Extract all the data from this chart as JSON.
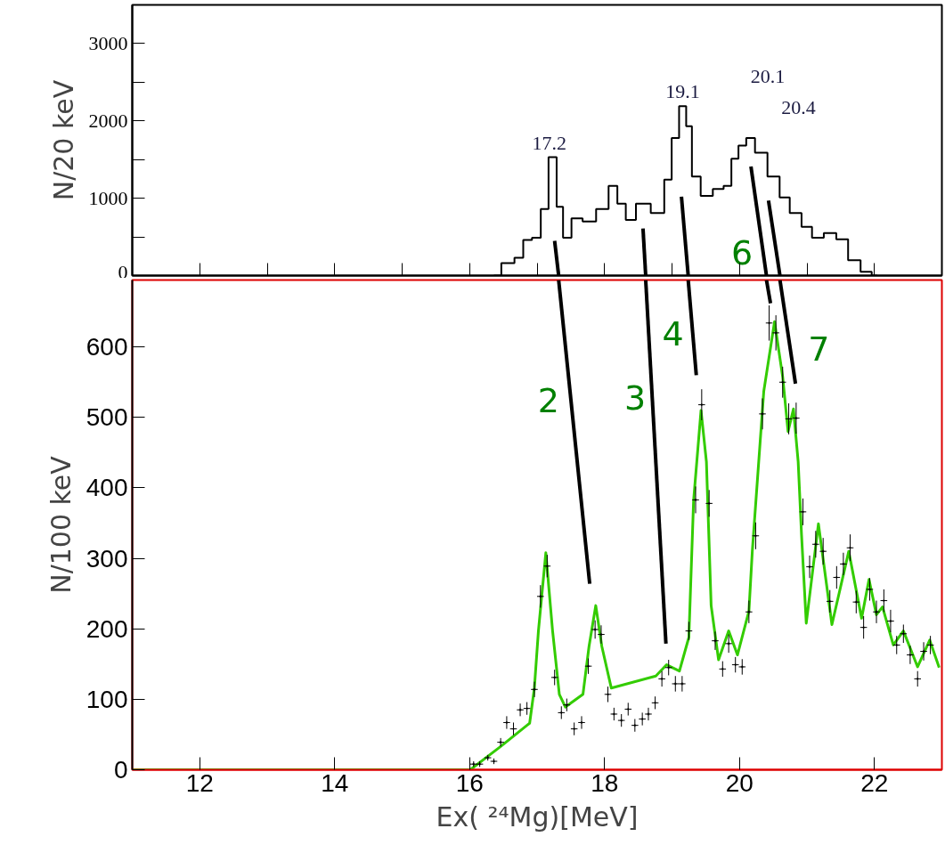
{
  "chart_data": [
    {
      "type": "step",
      "ylabel": "N/20 keV",
      "xlim": [
        11,
        23
      ],
      "ylim": [
        0,
        3500
      ],
      "tick_labels": "y",
      "xticks": [
        {
          "value": 12,
          "label": null
        },
        {
          "value": 13,
          "label": null
        },
        {
          "value": 14,
          "label": null
        },
        {
          "value": 15,
          "label": null
        },
        {
          "value": 16,
          "label": null
        },
        {
          "value": 17,
          "label": null
        },
        {
          "value": 18,
          "label": null
        },
        {
          "value": 19,
          "label": null
        },
        {
          "value": 20,
          "label": null
        },
        {
          "value": 21,
          "label": null
        },
        {
          "value": 22,
          "label": null
        }
      ],
      "yticks": [
        0,
        {
          "value": 500,
          "label": null
        },
        1000,
        {
          "value": 1500,
          "label": null
        },
        2000,
        {
          "value": 2500,
          "label": null
        },
        3000
      ],
      "x": [
        16.36,
        16.58,
        16.75,
        16.84,
        17.01,
        17.1,
        17.24,
        17.34,
        17.43,
        17.59,
        17.76,
        17.99,
        18.13,
        18.25,
        18.38,
        18.55,
        18.82,
        18.95,
        19.04,
        19.17,
        19.25,
        19.34,
        19.51,
        19.7,
        19.83,
        19.93,
        20.04,
        20.16,
        20.3,
        20.53,
        20.66,
        20.83,
        21.01,
        21.14,
        21.36,
        21.51,
        21.71,
        21.88,
        22.04
      ],
      "series": [
        {
          "color": "#000000",
          "values": [
            0,
            160,
            230,
            460,
            490,
            860,
            1530,
            890,
            490,
            740,
            700,
            860,
            1160,
            930,
            720,
            930,
            810,
            1240,
            1780,
            2190,
            1930,
            1280,
            1030,
            1120,
            1160,
            1510,
            1680,
            1780,
            1590,
            1280,
            1010,
            810,
            630,
            490,
            550,
            470,
            200,
            50,
            0
          ]
        },
        {
          "type": "line",
          "color": "#000000",
          "x": [
            17.26,
            17.32
          ],
          "values": [
            450,
            0
          ]
        },
        {
          "type": "line",
          "color": "#000000",
          "x": [
            18.57,
            18.61
          ],
          "values": [
            610,
            0
          ]
        },
        {
          "type": "line",
          "color": "#000000",
          "x": [
            19.14,
            19.24
          ],
          "values": [
            1020,
            0
          ]
        },
        {
          "type": "line",
          "color": "#000000",
          "x": [
            20.17,
            20.4
          ],
          "values": [
            1410,
            0
          ]
        },
        {
          "type": "line",
          "color": "#000000",
          "x": [
            20.43,
            20.6
          ],
          "values": [
            970,
            0
          ]
        }
      ],
      "annotations": [
        "17.2",
        "19.1",
        "20.1",
        "20.4",
        "6"
      ]
    },
    {
      "type": "scatter",
      "ylabel": "N/100 keV",
      "xlabel": "Ex( ²⁴Mg)[MeV]",
      "xlim": [
        11,
        23
      ],
      "ylim": [
        0,
        695
      ],
      "xticks": [
        12,
        14,
        16,
        18,
        20,
        22
      ],
      "yticks": [
        0,
        100,
        200,
        300,
        400,
        500,
        600
      ],
      "series": [
        {
          "marker": "cross",
          "color": "#000000",
          "x": [
            16.06,
            16.15,
            16.27,
            16.36,
            16.46,
            16.55,
            16.65,
            16.75,
            16.85,
            16.96,
            17.05,
            17.15,
            17.26,
            17.36,
            17.44,
            17.55,
            17.66,
            17.76,
            17.86,
            17.95,
            18.05,
            18.14,
            18.25,
            18.35,
            18.45,
            18.56,
            18.65,
            18.75,
            18.85,
            18.95,
            19.05,
            19.15,
            19.25,
            19.35,
            19.44,
            19.55,
            19.64,
            19.75,
            19.84,
            19.94,
            20.04,
            20.14,
            20.24,
            20.34,
            20.44,
            20.54,
            20.64,
            20.73,
            20.84,
            20.94,
            21.04,
            21.13,
            21.24,
            21.34,
            21.44,
            21.54,
            21.64,
            21.73,
            21.84,
            21.93,
            22.03,
            22.14,
            22.24,
            22.33,
            22.43,
            22.53,
            22.64,
            22.73,
            22.83
          ],
          "values": [
            8,
            8,
            17,
            12,
            39,
            67,
            58,
            85,
            87,
            114,
            246,
            289,
            131,
            81,
            92,
            58,
            67,
            147,
            199,
            192,
            107,
            79,
            70,
            86,
            63,
            72,
            79,
            95,
            129,
            145,
            122,
            122,
            197,
            383,
            518,
            378,
            183,
            143,
            179,
            149,
            146,
            224,
            332,
            505,
            634,
            620,
            550,
            498,
            499,
            366,
            288,
            320,
            310,
            239,
            273,
            292,
            315,
            238,
            202,
            256,
            224,
            240,
            211,
            177,
            193,
            163,
            129,
            168,
            177
          ],
          "errors": [
            4,
            4,
            4,
            4,
            6,
            9,
            9,
            9,
            9,
            11,
            16,
            16,
            11,
            9,
            9,
            9,
            9,
            11,
            13,
            13,
            11,
            9,
            9,
            9,
            9,
            9,
            9,
            9,
            11,
            11,
            11,
            11,
            13,
            19,
            22,
            19,
            13,
            11,
            13,
            11,
            11,
            16,
            19,
            22,
            25,
            25,
            22,
            22,
            22,
            19,
            16,
            19,
            19,
            16,
            16,
            16,
            19,
            16,
            16,
            16,
            16,
            16,
            16,
            13,
            13,
            13,
            11,
            13,
            13
          ],
          "xerrors": [
            0.05,
            0.05,
            0.05,
            0.05,
            0.05,
            0.05,
            0.05,
            0.05,
            0.05,
            0.05,
            0.05,
            0.05,
            0.05,
            0.05,
            0.05,
            0.05,
            0.05,
            0.05,
            0.05,
            0.05,
            0.05,
            0.05,
            0.05,
            0.05,
            0.05,
            0.05,
            0.05,
            0.05,
            0.05,
            0.05,
            0.05,
            0.05,
            0.05,
            0.05,
            0.05,
            0.05,
            0.05,
            0.05,
            0.05,
            0.05,
            0.05,
            0.05,
            0.05,
            0.05,
            0.05,
            0.05,
            0.05,
            0.05,
            0.05,
            0.05,
            0.05,
            0.05,
            0.05,
            0.05,
            0.05,
            0.05,
            0.05,
            0.05,
            0.05,
            0.05,
            0.05,
            0.05,
            0.05,
            0.05,
            0.05,
            0.05,
            0.05,
            0.05,
            0.05
          ]
        },
        {
          "type": "line",
          "color": "#33cc00",
          "x": [
            11,
            16.01,
            16.46,
            16.85,
            16.89,
            16.96,
            17.02,
            17.13,
            17.23,
            17.33,
            17.42,
            17.68,
            17.77,
            17.87,
            17.96,
            18.1,
            18.76,
            18.92,
            19.11,
            19.25,
            19.32,
            19.43,
            19.51,
            19.58,
            19.69,
            19.84,
            19.97,
            20.14,
            20.19,
            20.36,
            20.52,
            20.64,
            20.72,
            20.8,
            20.87,
            20.92,
            20.99,
            21.17,
            21.37,
            21.62,
            21.81,
            21.92,
            22.03,
            22.12,
            22.28,
            22.43,
            22.64,
            22.82,
            22.96
          ],
          "values": [
            0,
            0,
            33,
            63,
            66,
            116,
            197,
            308,
            197,
            107,
            89,
            107,
            175,
            233,
            175,
            116,
            133,
            149,
            140,
            188,
            382,
            510,
            437,
            233,
            156,
            197,
            163,
            225,
            310,
            537,
            636,
            558,
            480,
            512,
            437,
            333,
            208,
            349,
            206,
            310,
            215,
            270,
            220,
            231,
            177,
            197,
            146,
            184,
            145
          ]
        },
        {
          "type": "line",
          "color": "#000000",
          "x": [
            17.32,
            17.78
          ],
          "values": [
            695,
            264
          ]
        },
        {
          "type": "line",
          "color": "#000000",
          "x": [
            18.61,
            18.91
          ],
          "values": [
            695,
            179
          ]
        },
        {
          "type": "line",
          "color": "#000000",
          "x": [
            19.24,
            19.36
          ],
          "values": [
            695,
            560
          ]
        },
        {
          "type": "line",
          "color": "#000000",
          "x": [
            20.4,
            20.46
          ],
          "values": [
            695,
            662
          ]
        },
        {
          "type": "line",
          "color": "#000000",
          "x": [
            20.6,
            20.83
          ],
          "values": [
            695,
            548
          ]
        }
      ],
      "annotations": [
        "2",
        "3",
        "4",
        "7"
      ]
    }
  ]
}
